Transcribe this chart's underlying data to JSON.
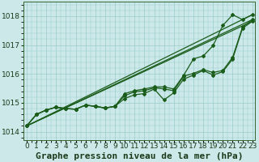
{
  "title": "Graphe pression niveau de la mer (hPa)",
  "bg_color": "#cce8e8",
  "grid_color": "#99cccc",
  "line_color": "#1a5c1a",
  "ylim": [
    1013.7,
    1018.5
  ],
  "yticks": [
    1014,
    1015,
    1016,
    1017,
    1018
  ],
  "line_zigzag": [
    1014.2,
    1014.6,
    1014.75,
    1014.85,
    1014.8,
    1014.78,
    1014.92,
    1014.88,
    1014.82,
    1014.88,
    1015.15,
    1015.28,
    1015.32,
    1015.48,
    1015.1,
    1015.35,
    1015.82,
    1015.96,
    1016.12,
    1015.96,
    1016.08,
    1016.52,
    1017.58,
    1017.82
  ],
  "line_mid": [
    1014.2,
    1014.6,
    1014.75,
    1014.85,
    1014.8,
    1014.78,
    1014.92,
    1014.88,
    1014.82,
    1014.88,
    1015.25,
    1015.38,
    1015.42,
    1015.52,
    1015.48,
    1015.42,
    1015.92,
    1016.02,
    1016.15,
    1016.05,
    1016.12,
    1016.58,
    1017.62,
    1017.88
  ],
  "line_top": [
    1014.2,
    1014.6,
    1014.75,
    1014.85,
    1014.8,
    1014.78,
    1014.92,
    1014.88,
    1014.82,
    1014.88,
    1015.32,
    1015.42,
    1015.48,
    1015.55,
    1015.55,
    1015.48,
    1015.95,
    1016.52,
    1016.62,
    1016.98,
    1017.68,
    1018.05,
    1017.88,
    1018.05
  ],
  "title_fontsize": 8,
  "tick_fontsize": 6.5
}
